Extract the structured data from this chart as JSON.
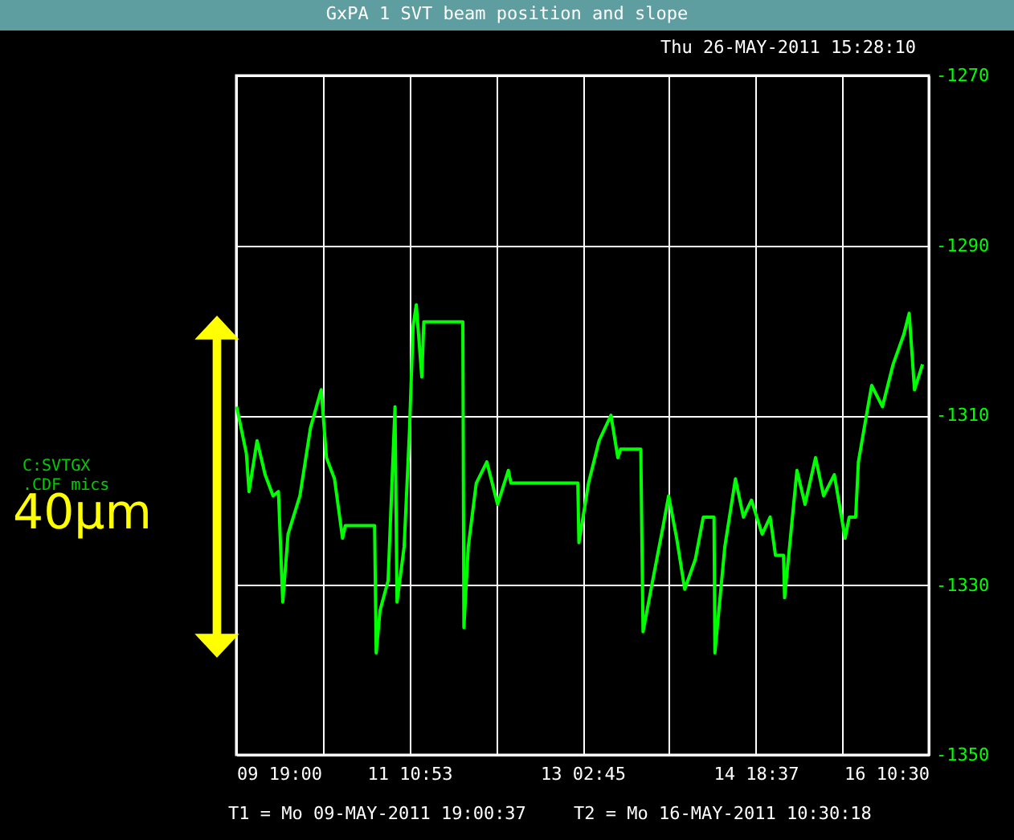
{
  "chart_data": {
    "type": "line",
    "title": "GxPA 1 SVT beam position and slope",
    "subtitle": "Thu 26-MAY-2011 15:28:10",
    "annotations": [
      "C:SVTGX .CDF mics",
      "40μm",
      "T1 = Mo 09-MAY-2011 19:00:37",
      "T2 = Mo 16-MAY-2011 10:30:18"
    ],
    "xlim": [
      "2011-05-09T19:00",
      "2011-05-16T10:30"
    ],
    "xticks": [
      {
        "value": "2011-05-09T19:00",
        "label": "09 19:00"
      },
      {
        "value": "2011-05-10T14:56",
        "label": null
      },
      {
        "value": "2011-05-11T10:53",
        "label": "11 10:53"
      },
      {
        "value": "2011-05-12T06:49",
        "label": null
      },
      {
        "value": "2011-05-13T02:45",
        "label": "13 02:45"
      },
      {
        "value": "2011-05-13T22:41",
        "label": null
      },
      {
        "value": "2011-05-14T18:37",
        "label": "14 18:37"
      },
      {
        "value": "2011-05-15T14:33",
        "label": null
      },
      {
        "value": "2011-05-16T10:30",
        "label": "16 10:30"
      }
    ],
    "ylim": [
      -1350,
      -1270
    ],
    "yticks": [
      -1350,
      -1330,
      -1310,
      -1290,
      -1270
    ],
    "grid": true,
    "marker": "none",
    "line_style": "solid",
    "series": [
      {
        "color": "#00ff00",
        "x": [
          "2011-05-09T19:06",
          "2011-05-09T21:20",
          "2011-05-09T21:57",
          "2011-05-09T23:48",
          "2011-05-10T01:39",
          "2011-05-10T03:29",
          "2011-05-10T04:43",
          "2011-05-10T05:43",
          "2011-05-10T06:56",
          "2011-05-10T09:40",
          "2011-05-10T12:06",
          "2011-05-10T14:34",
          "2011-05-10T15:47",
          "2011-05-10T17:38",
          "2011-05-10T19:29",
          "2011-05-10T20:07",
          "2011-05-11T02:52",
          "2011-05-11T03:14",
          "2011-05-11T04:07",
          "2011-05-11T05:58",
          "2011-05-11T07:34",
          "2011-05-11T08:02",
          "2011-05-11T09:40",
          "2011-05-11T10:53",
          "2011-05-11T11:44",
          "2011-05-11T12:28",
          "2011-05-11T13:44",
          "2011-05-11T14:12",
          "2011-05-11T23:11",
          "2011-05-11T23:26",
          "2011-05-12T00:26",
          "2011-05-12T02:17",
          "2011-05-12T04:43",
          "2011-05-12T07:11",
          "2011-05-12T09:40",
          "2011-05-12T10:16",
          "2011-05-13T01:40",
          "2011-05-13T01:55",
          "2011-05-13T04:08",
          "2011-05-13T06:34",
          "2011-05-13T09:18",
          "2011-05-13T10:53",
          "2011-05-13T11:31",
          "2011-05-13T16:10",
          "2011-05-13T16:41",
          "2011-05-13T18:54",
          "2011-05-13T21:20",
          "2011-05-13T22:35",
          "2011-05-14T00:26",
          "2011-05-14T02:17",
          "2011-05-14T04:43",
          "2011-05-14T06:34",
          "2011-05-14T09:02",
          "2011-05-14T09:14",
          "2011-05-14T11:31",
          "2011-05-14T13:58",
          "2011-05-14T15:48",
          "2011-05-14T17:39",
          "2011-05-14T20:07",
          "2011-05-14T21:58",
          "2011-05-14T23:11",
          "2011-05-15T01:02",
          "2011-05-15T01:17",
          "2011-05-15T04:08",
          "2011-05-15T05:59",
          "2011-05-15T08:25",
          "2011-05-15T10:16",
          "2011-05-15T12:44",
          "2011-05-15T15:13",
          "2011-05-15T16:10",
          "2011-05-15T17:39",
          "2011-05-15T18:17",
          "2011-05-15T20:08",
          "2011-05-15T21:20",
          "2011-05-15T23:49",
          "2011-05-16T02:17",
          "2011-05-16T04:44",
          "2011-05-16T05:59",
          "2011-05-16T07:12",
          "2011-05-16T09:03"
        ],
        "values": [
          -1309,
          -1314.5,
          -1319,
          -1313,
          -1317,
          -1319.5,
          -1319,
          -1332,
          -1324,
          -1319.5,
          -1311.5,
          -1307,
          -1315,
          -1317.5,
          -1324.5,
          -1323,
          -1323,
          -1338,
          -1333,
          -1329.5,
          -1309,
          -1332,
          -1325.5,
          -1312,
          -1299.5,
          -1297,
          -1305.5,
          -1299,
          -1299,
          -1335,
          -1325.5,
          -1318,
          -1315.5,
          -1320.5,
          -1316.5,
          -1318,
          -1318,
          -1325,
          -1318,
          -1313,
          -1310,
          -1315,
          -1314,
          -1314,
          -1335.5,
          -1329.5,
          -1323,
          -1319.5,
          -1324.5,
          -1330.5,
          -1327,
          -1322,
          -1322,
          -1338,
          -1325.5,
          -1317.5,
          -1322,
          -1320,
          -1324,
          -1322,
          -1326.5,
          -1326.5,
          -1331.5,
          -1316.5,
          -1320.5,
          -1315,
          -1319.5,
          -1317,
          -1324.5,
          -1322,
          -1322,
          -1315.5,
          -1310,
          -1306.5,
          -1309,
          -1304,
          -1300.5,
          -1298,
          -1307,
          -1304
        ]
      }
    ]
  }
}
